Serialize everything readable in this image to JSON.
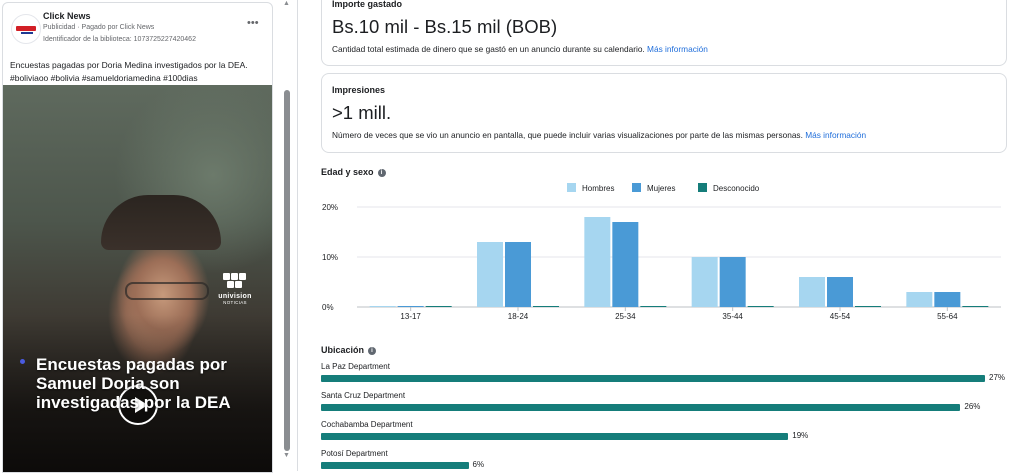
{
  "ad": {
    "page_name": "Click News",
    "sponsored": "Publicidad · Pagado por Click News",
    "library_id": "Identificador de la biblioteca: 1073725227420462",
    "more_label": "•••",
    "text_line1": "Encuestas pagadas por Doria Medina investigados por la DEA.",
    "text_line2": "#boliviaoo #bolivia #samueldoriamedina #100dias",
    "video": {
      "brand_name": "univision",
      "brand_sub": "NOTICIAS",
      "headline": "Encuestas pagadas por Samuel Doria son investigadas por la DEA"
    }
  },
  "scrollbar": {
    "up_icon": "▲",
    "down_icon": "▼"
  },
  "amount": {
    "title": "Importe gastado",
    "value": "Bs.10 mil - Bs.15 mil (BOB)",
    "description": "Cantidad total estimada de dinero que se gastó en un anuncio durante su calendario.",
    "link": "Más información"
  },
  "impressions": {
    "title": "Impresiones",
    "value": ">1 mill.",
    "description": "Número de veces que se vio un anuncio en pantalla, que puede incluir varias visualizaciones por parte de las mismas personas.",
    "link": "Más información"
  },
  "age_gender": {
    "title": "Edad y sexo",
    "info_icon": "i"
  },
  "chart_data": {
    "type": "bar",
    "title": "Edad y sexo",
    "categories": [
      "13-17",
      "18-24",
      "25-34",
      "35-44",
      "45-54",
      "55-64"
    ],
    "series": [
      {
        "name": "Hombres",
        "color": "#a6d6f0",
        "values": [
          0.1,
          13,
          18,
          10,
          6,
          3
        ]
      },
      {
        "name": "Mujeres",
        "color": "#4a9ad6",
        "values": [
          0.1,
          13,
          17,
          10,
          6,
          3
        ]
      },
      {
        "name": "Desconocido",
        "color": "#157d7a",
        "values": [
          0.1,
          0.1,
          0.1,
          0.1,
          0.1,
          0.1
        ]
      }
    ],
    "ylim": [
      0,
      20
    ],
    "yticks": [
      "0%",
      "10%",
      "20%"
    ],
    "ytick_values": [
      0,
      10,
      20
    ],
    "grid": true,
    "legend": "top-center"
  },
  "location": {
    "title": "Ubicación",
    "info_icon": "i",
    "items": [
      {
        "name": "La Paz Department",
        "percent": 27,
        "label": "27%"
      },
      {
        "name": "Santa Cruz Department",
        "percent": 26,
        "label": "26%"
      },
      {
        "name": "Cochabamba Department",
        "percent": 19,
        "label": "19%"
      },
      {
        "name": "Potosí Department",
        "percent": 6,
        "label": "6%"
      }
    ]
  }
}
